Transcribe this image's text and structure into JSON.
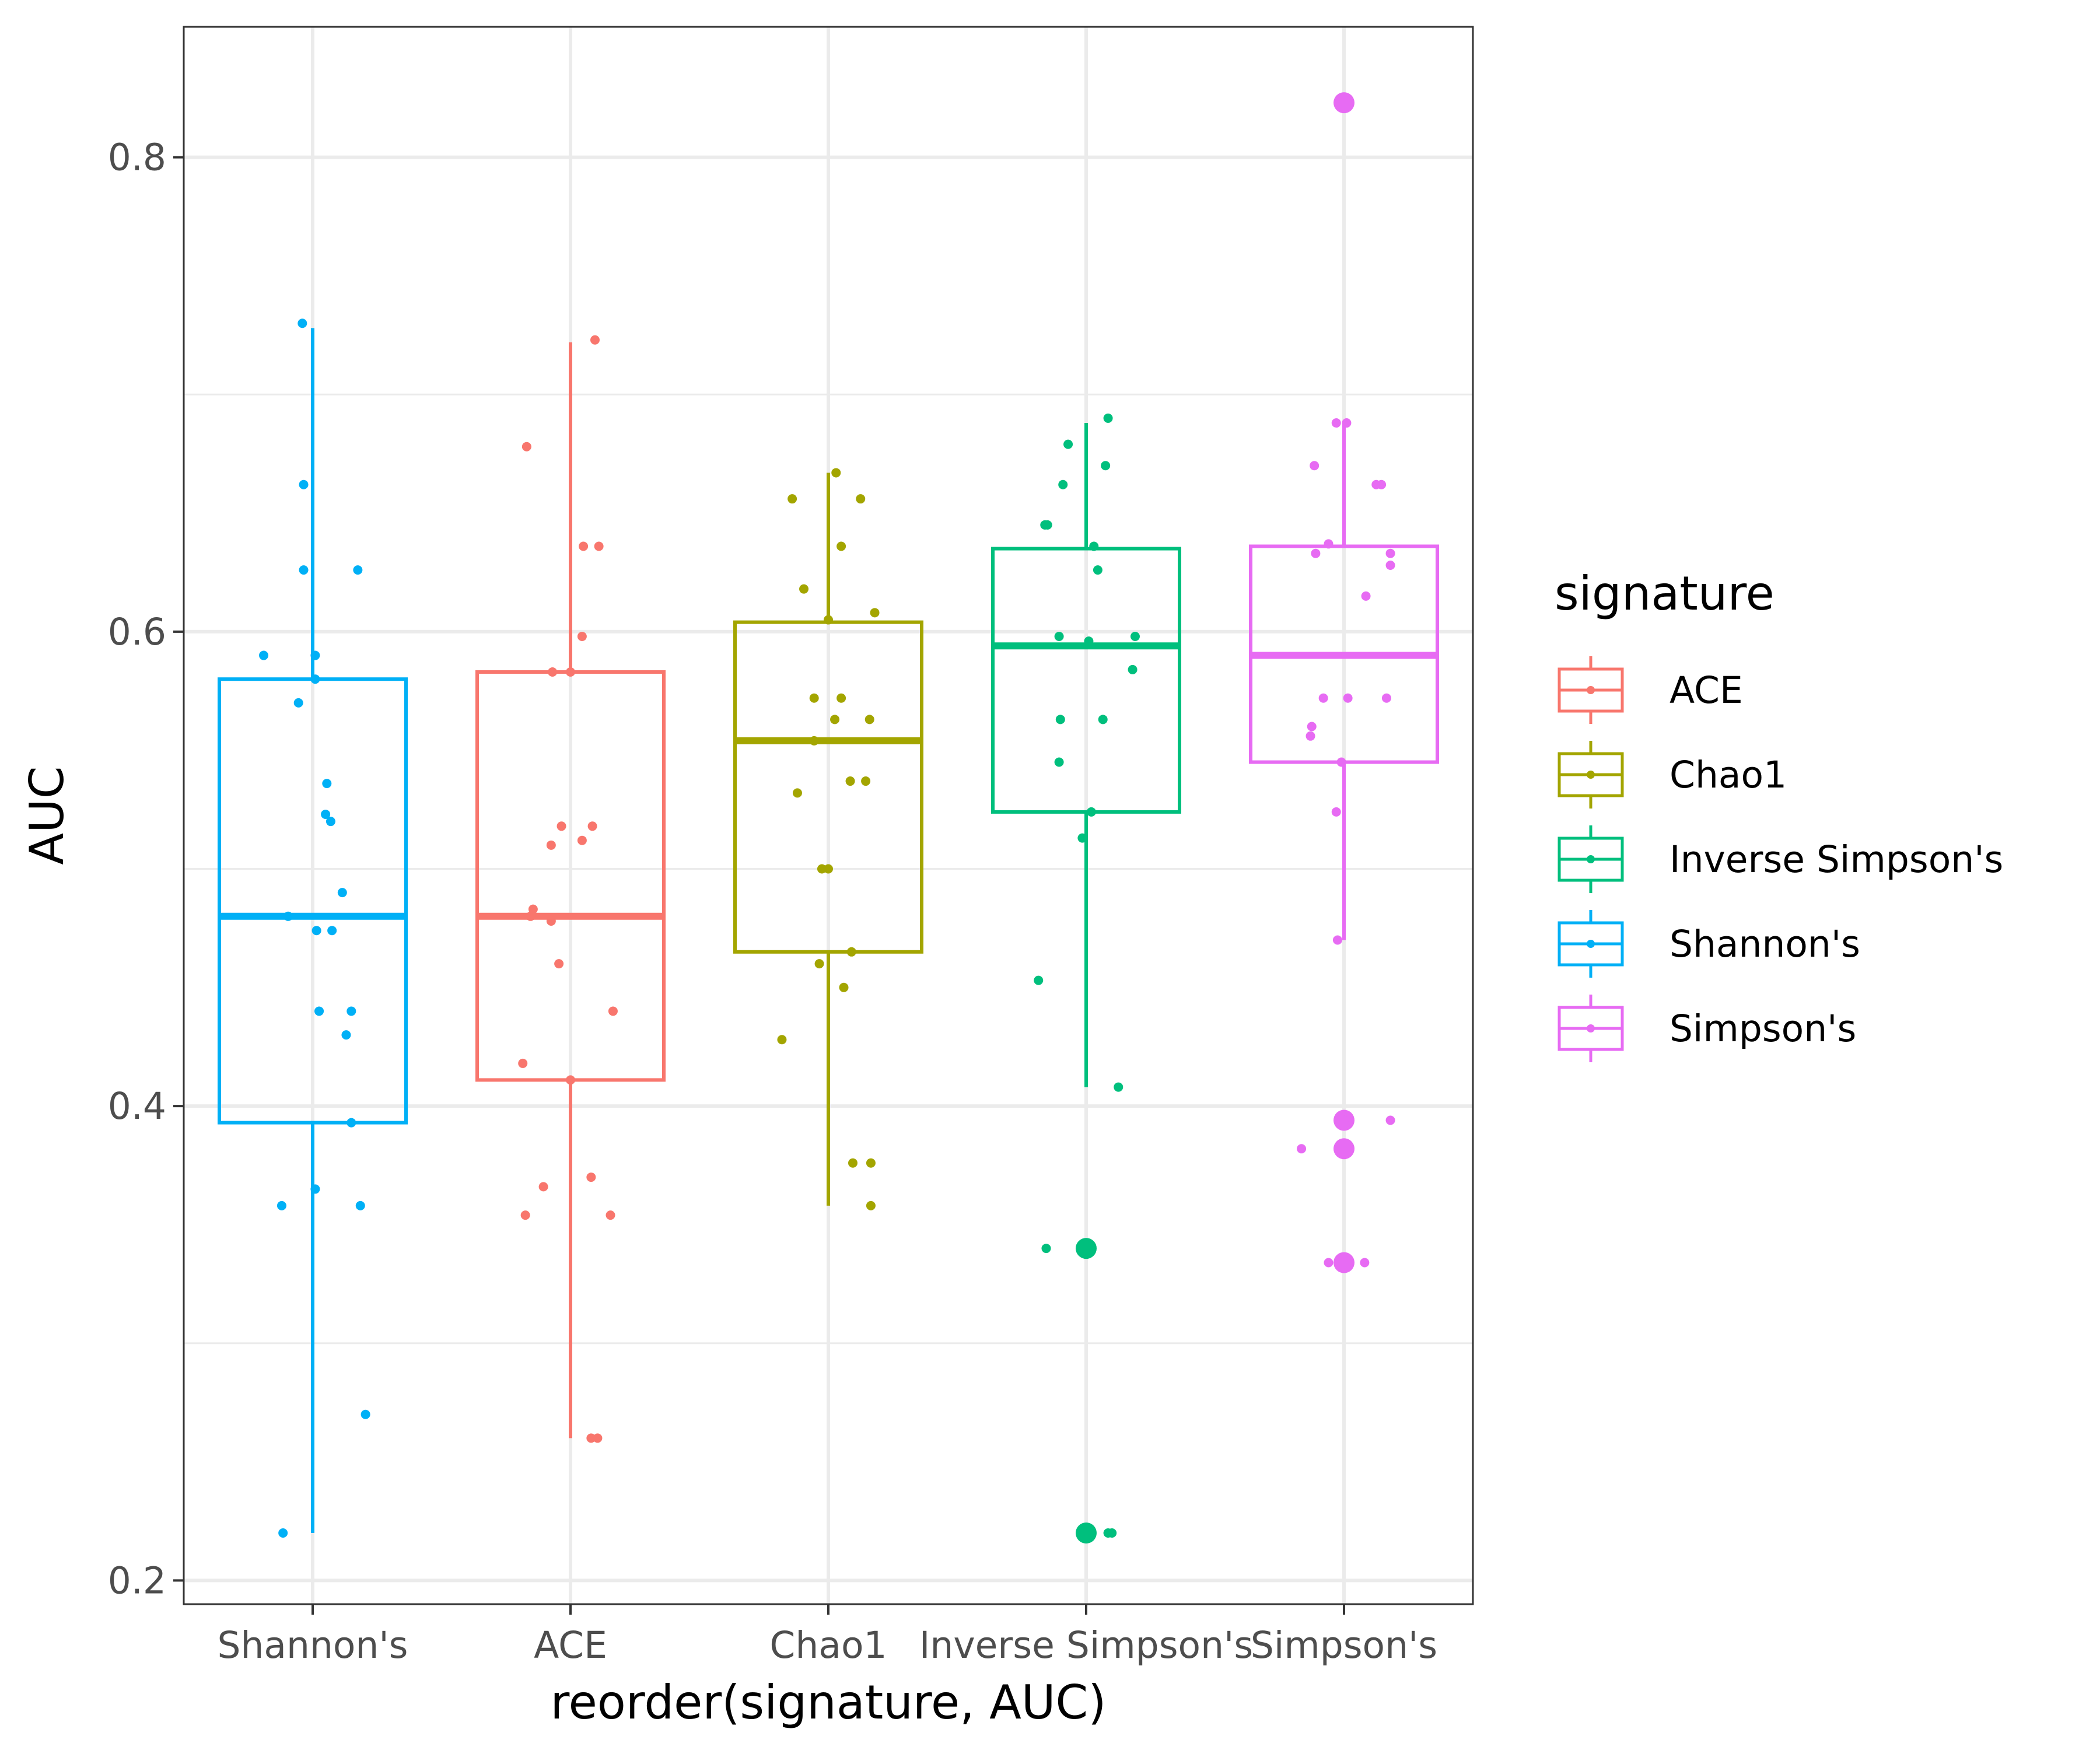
{
  "chart_data": {
    "type": "box",
    "xlabel": "reorder(signature, AUC)",
    "ylabel": "AUC",
    "ylim": [
      0.19,
      0.855
    ],
    "y_ticks": [
      0.2,
      0.4,
      0.6,
      0.8
    ],
    "y_tick_labels": [
      "0.2",
      "0.4",
      "0.6",
      "0.8"
    ],
    "grid": true,
    "legend": {
      "title": "signature",
      "position": "right"
    },
    "categories": [
      "Shannon's",
      "ACE",
      "Chao1",
      "Inverse Simpson's",
      "Simpson's"
    ],
    "legend_order": [
      "ACE",
      "Chao1",
      "Inverse Simpson's",
      "Shannon's",
      "Simpson's"
    ],
    "colors": {
      "ACE": "#F8766D",
      "Chao1": "#A3A500",
      "Inverse Simpson's": "#00BF7D",
      "Shannon's": "#00B0F6",
      "Simpson's": "#E76BF3"
    },
    "series": [
      {
        "name": "Shannon's",
        "box": {
          "whisker_low": 0.22,
          "q1": 0.393,
          "median": 0.48,
          "q3": 0.58,
          "whisker_high": 0.728
        },
        "outliers": [],
        "points": [
          [
            -0.23,
            0.22
          ],
          [
            0.41,
            0.27
          ],
          [
            -0.24,
            0.358
          ],
          [
            0.02,
            0.365
          ],
          [
            0.37,
            0.358
          ],
          [
            0.3,
            0.393
          ],
          [
            0.05,
            0.44
          ],
          [
            0.3,
            0.44
          ],
          [
            0.26,
            0.43
          ],
          [
            0.03,
            0.474
          ],
          [
            0.15,
            0.474
          ],
          [
            -0.19,
            0.48
          ],
          [
            0.23,
            0.49
          ],
          [
            0.1,
            0.523
          ],
          [
            0.14,
            0.52
          ],
          [
            0.11,
            0.536
          ],
          [
            -0.11,
            0.57
          ],
          [
            0.02,
            0.58
          ],
          [
            0.02,
            0.59
          ],
          [
            -0.38,
            0.59
          ],
          [
            0.35,
            0.626
          ],
          [
            -0.07,
            0.626
          ],
          [
            -0.07,
            0.662
          ],
          [
            -0.08,
            0.73
          ]
        ]
      },
      {
        "name": "ACE",
        "box": {
          "whisker_low": 0.26,
          "q1": 0.411,
          "median": 0.48,
          "q3": 0.583,
          "whisker_high": 0.722
        },
        "outliers": [],
        "points": [
          [
            0.16,
            0.26
          ],
          [
            0.21,
            0.26
          ],
          [
            -0.35,
            0.354
          ],
          [
            -0.21,
            0.366
          ],
          [
            0.16,
            0.37
          ],
          [
            0.31,
            0.354
          ],
          [
            -0.37,
            0.418
          ],
          [
            0.0,
            0.411
          ],
          [
            0.33,
            0.44
          ],
          [
            -0.09,
            0.46
          ],
          [
            -0.31,
            0.48
          ],
          [
            -0.29,
            0.483
          ],
          [
            -0.15,
            0.478
          ],
          [
            -0.15,
            0.51
          ],
          [
            -0.07,
            0.518
          ],
          [
            0.09,
            0.512
          ],
          [
            0.17,
            0.518
          ],
          [
            0.0,
            0.583
          ],
          [
            -0.14,
            0.583
          ],
          [
            0.09,
            0.598
          ],
          [
            0.1,
            0.636
          ],
          [
            0.22,
            0.636
          ],
          [
            -0.34,
            0.678
          ],
          [
            0.19,
            0.723
          ]
        ]
      },
      {
        "name": "Chao1",
        "box": {
          "whisker_low": 0.358,
          "q1": 0.465,
          "median": 0.554,
          "q3": 0.604,
          "whisker_high": 0.667
        },
        "outliers": [],
        "points": [
          [
            -0.36,
            0.428
          ],
          [
            -0.07,
            0.46
          ],
          [
            0.12,
            0.45
          ],
          [
            0.19,
            0.376
          ],
          [
            0.33,
            0.376
          ],
          [
            0.33,
            0.358
          ],
          [
            0.18,
            0.465
          ],
          [
            -0.05,
            0.5
          ],
          [
            0.0,
            0.5
          ],
          [
            -0.24,
            0.532
          ],
          [
            0.17,
            0.537
          ],
          [
            0.29,
            0.537
          ],
          [
            -0.11,
            0.554
          ],
          [
            0.1,
            0.572
          ],
          [
            -0.11,
            0.572
          ],
          [
            0.05,
            0.563
          ],
          [
            0.32,
            0.563
          ],
          [
            0.36,
            0.608
          ],
          [
            0.0,
            0.605
          ],
          [
            -0.19,
            0.618
          ],
          [
            0.1,
            0.636
          ],
          [
            -0.28,
            0.656
          ],
          [
            0.25,
            0.656
          ],
          [
            0.06,
            0.667
          ]
        ]
      },
      {
        "name": "Inverse Simpson's",
        "box": {
          "whisker_low": 0.408,
          "q1": 0.524,
          "median": 0.594,
          "q3": 0.635,
          "whisker_high": 0.688
        },
        "outliers": [
          0.22,
          0.34
        ],
        "points": [
          [
            0.17,
            0.22
          ],
          [
            0.2,
            0.22
          ],
          [
            -0.31,
            0.34
          ],
          [
            -0.37,
            0.453
          ],
          [
            0.25,
            0.408
          ],
          [
            -0.03,
            0.513
          ],
          [
            0.04,
            0.524
          ],
          [
            -0.21,
            0.545
          ],
          [
            -0.2,
            0.563
          ],
          [
            0.13,
            0.563
          ],
          [
            0.02,
            0.596
          ],
          [
            0.36,
            0.584
          ],
          [
            0.38,
            0.598
          ],
          [
            -0.21,
            0.598
          ],
          [
            0.09,
            0.626
          ],
          [
            0.06,
            0.636
          ],
          [
            -0.32,
            0.645
          ],
          [
            -0.3,
            0.645
          ],
          [
            -0.18,
            0.662
          ],
          [
            0.15,
            0.67
          ],
          [
            -0.14,
            0.679
          ],
          [
            0.17,
            0.69
          ]
        ]
      },
      {
        "name": "Simpson's",
        "box": {
          "whisker_low": 0.47,
          "q1": 0.545,
          "median": 0.59,
          "q3": 0.636,
          "whisker_high": 0.688
        },
        "outliers": [
          0.334,
          0.382,
          0.394,
          0.823
        ],
        "points": [
          [
            -0.12,
            0.334
          ],
          [
            0.16,
            0.334
          ],
          [
            -0.33,
            0.382
          ],
          [
            0.36,
            0.394
          ],
          [
            0.0,
            0.394
          ],
          [
            -0.05,
            0.47
          ],
          [
            -0.06,
            0.524
          ],
          [
            -0.26,
            0.556
          ],
          [
            -0.25,
            0.56
          ],
          [
            -0.16,
            0.572
          ],
          [
            0.03,
            0.572
          ],
          [
            0.33,
            0.572
          ],
          [
            -0.02,
            0.545
          ],
          [
            0.17,
            0.615
          ],
          [
            -0.22,
            0.633
          ],
          [
            -0.12,
            0.637
          ],
          [
            0.36,
            0.628
          ],
          [
            0.36,
            0.633
          ],
          [
            -0.23,
            0.67
          ],
          [
            0.25,
            0.662
          ],
          [
            0.29,
            0.662
          ],
          [
            -0.06,
            0.688
          ],
          [
            0.02,
            0.688
          ]
        ]
      }
    ]
  }
}
